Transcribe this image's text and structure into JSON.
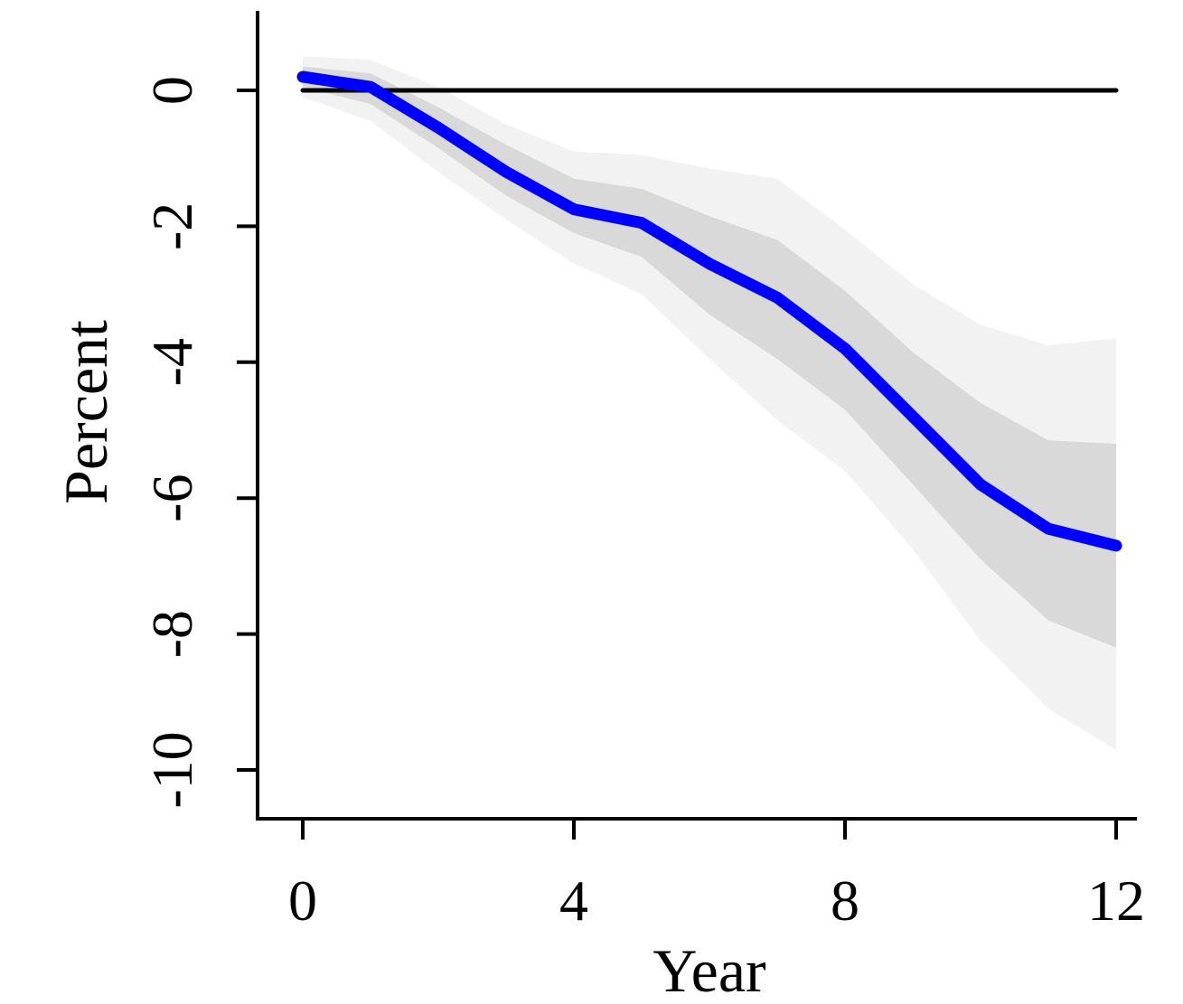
{
  "chart_data": {
    "type": "line",
    "title": "",
    "xlabel": "Year",
    "ylabel": "Percent",
    "xlim": [
      0,
      12
    ],
    "ylim": [
      -10,
      0
    ],
    "x_ticks": [
      0,
      4,
      8,
      12
    ],
    "x_tick_labels": [
      "0",
      "4",
      "8",
      "12"
    ],
    "y_ticks": [
      0,
      -2,
      -4,
      -6,
      -8,
      -10
    ],
    "y_tick_labels": [
      "0",
      "-2",
      "-4",
      "-6",
      "-8",
      "-10"
    ],
    "grid": false,
    "legend": "none",
    "x": [
      0,
      1,
      2,
      3,
      4,
      5,
      6,
      7,
      8,
      9,
      10,
      11,
      12
    ],
    "series": [
      {
        "values": [
          0.2,
          0.05,
          -0.55,
          -1.2,
          -1.75,
          -1.95,
          -2.55,
          -3.05,
          -3.8,
          -4.8,
          -5.8,
          -6.45,
          -6.7
        ],
        "color": "#0000ff"
      }
    ],
    "bands": [
      {
        "level": "outer",
        "color": "#f2f2f2",
        "lower": [
          -0.1,
          -0.45,
          -1.2,
          -1.9,
          -2.55,
          -3.0,
          -3.95,
          -4.85,
          -5.6,
          -6.75,
          -8.1,
          -9.1,
          -9.7
        ],
        "upper": [
          0.5,
          0.45,
          0.05,
          -0.5,
          -0.9,
          -0.95,
          -1.15,
          -1.3,
          -2.05,
          -2.85,
          -3.45,
          -3.75,
          -3.65
        ]
      },
      {
        "level": "inner",
        "color": "#d9d9d9",
        "lower": [
          0.05,
          -0.2,
          -0.85,
          -1.55,
          -2.1,
          -2.45,
          -3.3,
          -3.95,
          -4.7,
          -5.8,
          -6.9,
          -7.8,
          -8.2
        ],
        "upper": [
          0.35,
          0.25,
          -0.25,
          -0.8,
          -1.3,
          -1.45,
          -1.85,
          -2.2,
          -2.95,
          -3.85,
          -4.6,
          -5.15,
          -5.2
        ]
      }
    ],
    "reference_line": {
      "y": 0,
      "color": "#000000"
    }
  }
}
